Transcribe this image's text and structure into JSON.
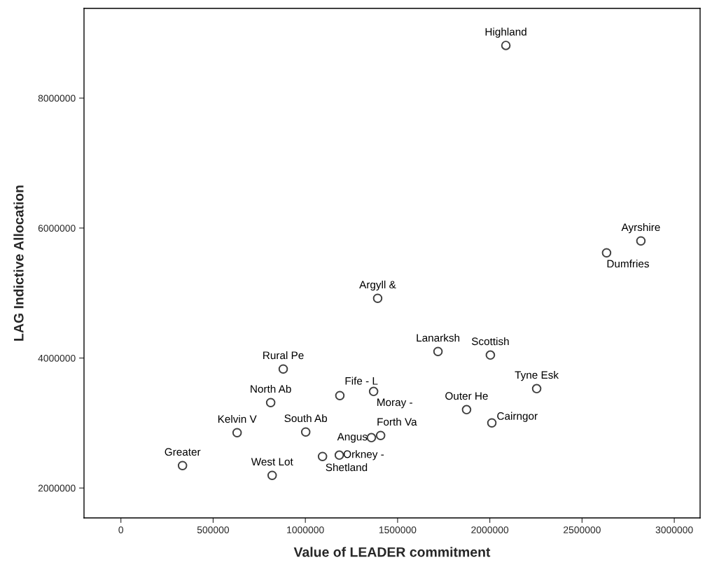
{
  "chart_data": {
    "type": "scatter",
    "xlabel": "Value of LEADER commitment",
    "ylabel": "LAG Indictive Allocation",
    "x": [
      2087000,
      2819000,
      2633000,
      1392000,
      1719000,
      2003000,
      2254000,
      880000,
      1187000,
      1370000,
      812000,
      1874000,
      2011000,
      630000,
      1002000,
      1358000,
      1408000,
      334000,
      820000,
      1093000,
      1184000
    ],
    "series": [
      {
        "color": "#404040",
        "values": [
          8810000,
          5802000,
          5619000,
          4919000,
          4100000,
          4046000,
          3529000,
          3831000,
          3422000,
          3486000,
          3314000,
          3206000,
          3002000,
          2851000,
          2862000,
          2775000,
          2808000,
          2345000,
          2194000,
          2485000,
          2506000
        ]
      }
    ],
    "annotations": [
      {
        "text": "Highland",
        "x": 2087000,
        "y": 8810000
      },
      {
        "text": "Ayrshire",
        "x": 2819000,
        "y": 5802000
      },
      {
        "text": "Dumfries",
        "x": 2633000,
        "y": 5619000
      },
      {
        "text": "Argyll &",
        "x": 1392000,
        "y": 4919000
      },
      {
        "text": "Lanarksh",
        "x": 1719000,
        "y": 4100000
      },
      {
        "text": "Scottish",
        "x": 2003000,
        "y": 4046000
      },
      {
        "text": "Tyne Esk",
        "x": 2254000,
        "y": 3529000
      },
      {
        "text": "Rural Pe",
        "x": 880000,
        "y": 3831000
      },
      {
        "text": "Fife - L",
        "x": 1187000,
        "y": 3422000
      },
      {
        "text": "Moray -",
        "x": 1370000,
        "y": 3486000
      },
      {
        "text": "North Ab",
        "x": 812000,
        "y": 3314000
      },
      {
        "text": "Outer He",
        "x": 1874000,
        "y": 3206000
      },
      {
        "text": "Cairngor",
        "x": 2011000,
        "y": 3002000
      },
      {
        "text": "Kelvin V",
        "x": 630000,
        "y": 2851000
      },
      {
        "text": "South Ab",
        "x": 1002000,
        "y": 2862000
      },
      {
        "text": "Angus",
        "x": 1358000,
        "y": 2775000
      },
      {
        "text": "Forth Va",
        "x": 1408000,
        "y": 2808000
      },
      {
        "text": "Greater",
        "x": 334000,
        "y": 2345000
      },
      {
        "text": "West Lot",
        "x": 820000,
        "y": 2194000
      },
      {
        "text": "Shetland",
        "x": 1093000,
        "y": 2485000
      },
      {
        "text": "Orkney -",
        "x": 1184000,
        "y": 2506000
      }
    ],
    "xlim": [
      -200000,
      3140000
    ],
    "xticks": [
      0,
      500000,
      1000000,
      1500000,
      2000000,
      2500000,
      3000000
    ],
    "ylim": [
      1540000,
      9380000
    ],
    "yticks": [
      2000000,
      4000000,
      6000000,
      8000000
    ],
    "grid": false,
    "legend": false,
    "marker": "circle"
  }
}
